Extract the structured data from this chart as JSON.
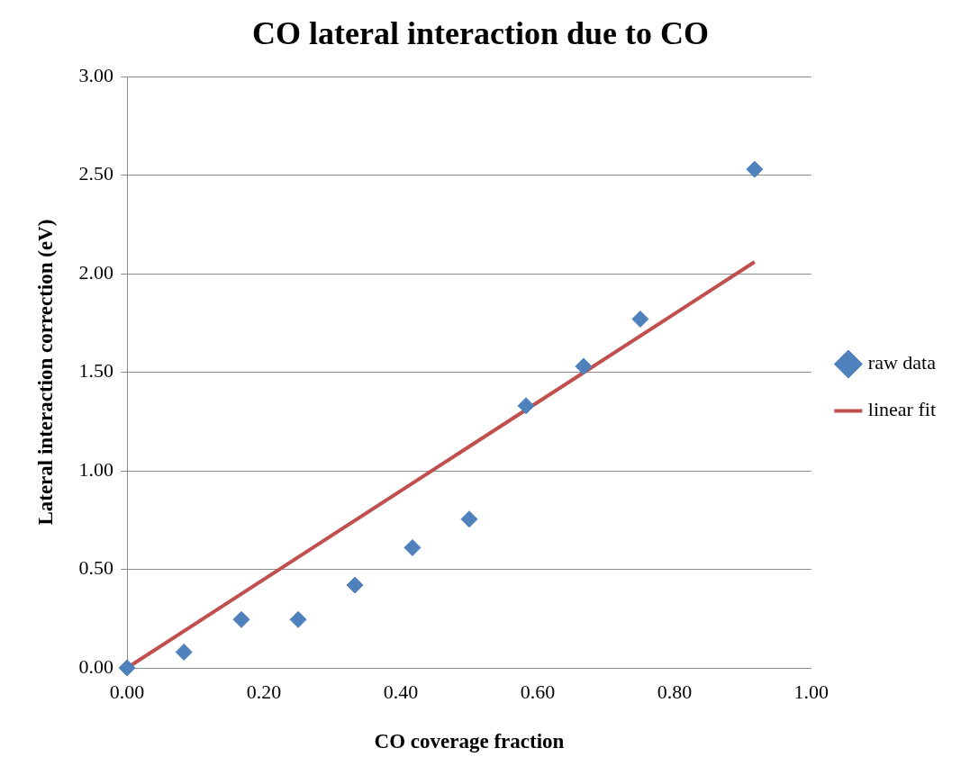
{
  "chart_data": {
    "type": "scatter",
    "title": "CO lateral interaction due to CO",
    "xlabel": "CO coverage fraction",
    "ylabel": "Lateral interaction correction (eV)",
    "series": [
      {
        "name": "raw data",
        "color": "#4f81bd",
        "marker": "diamond",
        "x": [
          0,
          0.083,
          0.167,
          0.25,
          0.333,
          0.417,
          0.5,
          0.583,
          0.667,
          0.75,
          0.917
        ],
        "values": [
          0,
          0.08,
          0.245,
          0.245,
          0.42,
          0.61,
          0.755,
          1.33,
          1.53,
          1.77,
          2.53
        ]
      },
      {
        "name": "linear fit",
        "type": "line",
        "color": "#c0504d",
        "marker": "none",
        "line_style": "solid",
        "x": [
          0,
          0.917
        ],
        "values": [
          0,
          2.06
        ]
      }
    ],
    "xlim": [
      0,
      1
    ],
    "xticks": [
      {
        "value": 0,
        "label": "0.00"
      },
      {
        "value": 0.2,
        "label": "0.20"
      },
      {
        "value": 0.4,
        "label": "0.40"
      },
      {
        "value": 0.6,
        "label": "0.60"
      },
      {
        "value": 0.8,
        "label": "0.80"
      },
      {
        "value": 1,
        "label": "1.00"
      }
    ],
    "ylim": [
      0,
      3
    ],
    "yticks": [
      {
        "value": 0,
        "label": "0.00"
      },
      {
        "value": 0.5,
        "label": "0.50"
      },
      {
        "value": 1,
        "label": "1.00"
      },
      {
        "value": 1.5,
        "label": "1.50"
      },
      {
        "value": 2,
        "label": "2.00"
      },
      {
        "value": 2.5,
        "label": "2.50"
      },
      {
        "value": 3,
        "label": "3.00"
      }
    ],
    "grid": "y",
    "legend": "right"
  }
}
